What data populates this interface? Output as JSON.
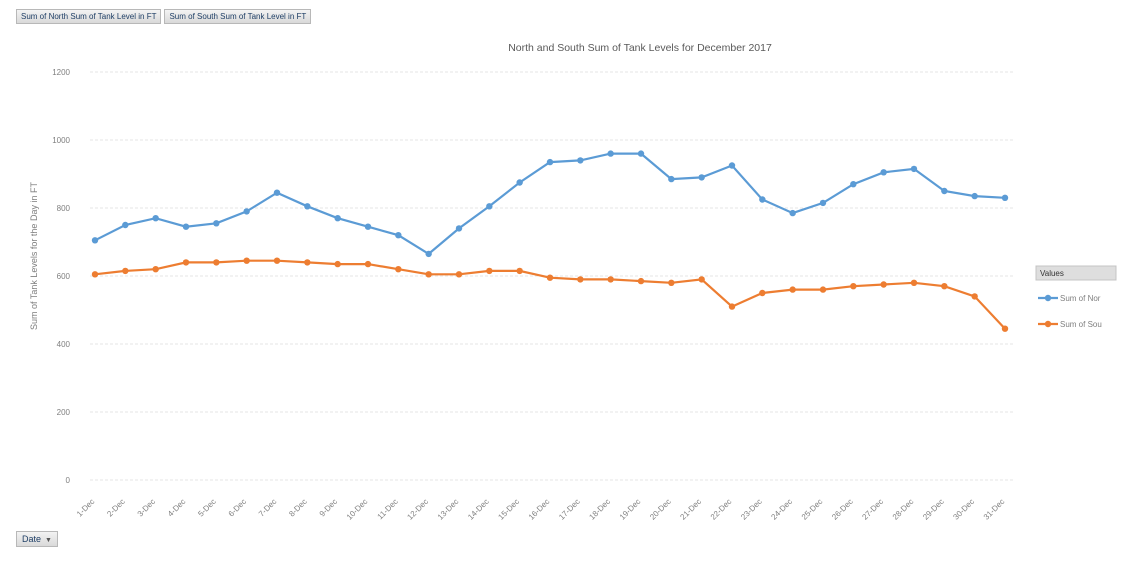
{
  "field_buttons": [
    "Sum of North Sum of Tank Level in FT",
    "Sum of South Sum of  Tank Level in FT"
  ],
  "date_filter": {
    "label": "Date",
    "arrow": "▼"
  },
  "colors": {
    "north": "#5b9bd5",
    "south": "#ed7d31",
    "grid": "#e6e6e6",
    "text": "#7f7f7f"
  },
  "chart_data": {
    "type": "line",
    "title": "North and South Sum of Tank Levels for December 2017",
    "ylabel": "Sum of Tank Levels for the Day in FT",
    "xlabel": "",
    "ylim": [
      0,
      1200
    ],
    "yticks": [
      0,
      200,
      400,
      600,
      800,
      1000,
      1200
    ],
    "grid": true,
    "legend_position": "right",
    "legend_title": "Values",
    "categories": [
      "1-Dec",
      "2-Dec",
      "3-Dec",
      "4-Dec",
      "5-Dec",
      "6-Dec",
      "7-Dec",
      "8-Dec",
      "9-Dec",
      "10-Dec",
      "11-Dec",
      "12-Dec",
      "13-Dec",
      "14-Dec",
      "15-Dec",
      "16-Dec",
      "17-Dec",
      "18-Dec",
      "19-Dec",
      "20-Dec",
      "21-Dec",
      "22-Dec",
      "23-Dec",
      "24-Dec",
      "25-Dec",
      "26-Dec",
      "27-Dec",
      "28-Dec",
      "29-Dec",
      "30-Dec",
      "31-Dec"
    ],
    "series": [
      {
        "name": "Sum of Nor",
        "color": "#5b9bd5",
        "values": [
          705,
          750,
          770,
          745,
          755,
          790,
          845,
          805,
          770,
          745,
          720,
          665,
          740,
          805,
          875,
          935,
          940,
          960,
          960,
          885,
          890,
          925,
          825,
          785,
          815,
          870,
          905,
          915,
          850,
          835,
          830
        ]
      },
      {
        "name": "Sum of Sou",
        "color": "#ed7d31",
        "values": [
          605,
          615,
          620,
          640,
          640,
          645,
          645,
          640,
          635,
          635,
          620,
          605,
          605,
          615,
          615,
          595,
          590,
          590,
          585,
          580,
          590,
          510,
          550,
          560,
          560,
          570,
          575,
          580,
          570,
          540,
          445
        ]
      }
    ]
  }
}
